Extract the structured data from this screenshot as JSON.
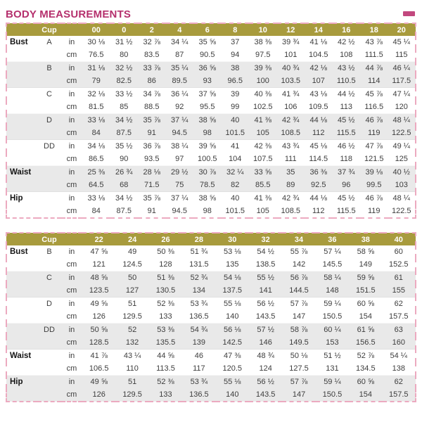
{
  "page": {
    "title": "BODY MEASUREMENTS"
  },
  "decoration": {
    "accent_dash_color": "#c2487e"
  },
  "colors": {
    "title_text": "#b5306d",
    "header_bg": "#a89b3d",
    "header_text": "#ffffff",
    "row_shade": "#e9e9e9",
    "dashed_border": "#ecaac0",
    "body_text": "#3d3d3d"
  },
  "units": [
    "in",
    "cm"
  ],
  "tables": [
    {
      "cup_header": "Cup",
      "sizes": [
        "00",
        "0",
        "2",
        "4",
        "6",
        "8",
        "10",
        "12",
        "14",
        "16",
        "18",
        "20"
      ],
      "groups": [
        {
          "label": "Bust",
          "cup": "A",
          "shaded": false,
          "in": [
            "30 ⅛",
            "31 ½",
            "32 ⅞",
            "34 ¼",
            "35 ⅝",
            "37",
            "38 ⅜",
            "39 ¾",
            "41 ⅛",
            "42 ½",
            "43 ⅞",
            "45 ¼"
          ],
          "cm": [
            "76.5",
            "80",
            "83.5",
            "87",
            "90.5",
            "94",
            "97.5",
            "101",
            "104.5",
            "108",
            "111.5",
            "115"
          ]
        },
        {
          "label": "",
          "cup": "B",
          "shaded": true,
          "in": [
            "31 ⅛",
            "32 ½",
            "33 ⅞",
            "35 ¼",
            "36 ⅝",
            "38",
            "39 ⅜",
            "40 ¾",
            "42 ⅛",
            "43 ½",
            "44 ⅞",
            "46 ¼"
          ],
          "cm": [
            "79",
            "82.5",
            "86",
            "89.5",
            "93",
            "96.5",
            "100",
            "103.5",
            "107",
            "110.5",
            "114",
            "117.5"
          ]
        },
        {
          "label": "",
          "cup": "C",
          "shaded": false,
          "in": [
            "32 ⅛",
            "33 ½",
            "34 ⅞",
            "36 ¼",
            "37 ⅝",
            "39",
            "40 ⅜",
            "41 ¾",
            "43 ⅛",
            "44 ½",
            "45 ⅞",
            "47 ¼"
          ],
          "cm": [
            "81.5",
            "85",
            "88.5",
            "92",
            "95.5",
            "99",
            "102.5",
            "106",
            "109.5",
            "113",
            "116.5",
            "120"
          ]
        },
        {
          "label": "",
          "cup": "D",
          "shaded": true,
          "in": [
            "33 ⅛",
            "34 ½",
            "35 ⅞",
            "37 ¼",
            "38 ⅝",
            "40",
            "41 ⅜",
            "42 ¾",
            "44 ⅛",
            "45 ½",
            "46 ⅞",
            "48 ¼"
          ],
          "cm": [
            "84",
            "87.5",
            "91",
            "94.5",
            "98",
            "101.5",
            "105",
            "108.5",
            "112",
            "115.5",
            "119",
            "122.5"
          ]
        },
        {
          "label": "",
          "cup": "DD",
          "shaded": false,
          "in": [
            "34 ⅛",
            "35 ½",
            "36 ⅞",
            "38 ¼",
            "39 ⅝",
            "41",
            "42 ⅜",
            "43 ¾",
            "45 ⅛",
            "46 ½",
            "47 ⅞",
            "49 ¼"
          ],
          "cm": [
            "86.5",
            "90",
            "93.5",
            "97",
            "100.5",
            "104",
            "107.5",
            "111",
            "114.5",
            "118",
            "121.5",
            "125"
          ]
        },
        {
          "label": "Waist",
          "cup": "",
          "shaded": true,
          "in": [
            "25 ⅜",
            "26 ¾",
            "28 ⅛",
            "29 ½",
            "30 ⅞",
            "32 ¼",
            "33 ⅝",
            "35",
            "36 ⅜",
            "37 ¾",
            "39 ⅛",
            "40 ½"
          ],
          "cm": [
            "64.5",
            "68",
            "71.5",
            "75",
            "78.5",
            "82",
            "85.5",
            "89",
            "92.5",
            "96",
            "99.5",
            "103"
          ]
        },
        {
          "label": "Hip",
          "cup": "",
          "shaded": false,
          "in": [
            "33 ⅛",
            "34 ½",
            "35 ⅞",
            "37 ¼",
            "38 ⅝",
            "40",
            "41 ⅜",
            "42 ¾",
            "44 ⅛",
            "45 ½",
            "46 ⅞",
            "48 ¼"
          ],
          "cm": [
            "84",
            "87.5",
            "91",
            "94.5",
            "98",
            "101.5",
            "105",
            "108.5",
            "112",
            "115.5",
            "119",
            "122.5"
          ]
        }
      ]
    },
    {
      "cup_header": "Cup",
      "sizes": [
        "22",
        "24",
        "26",
        "28",
        "30",
        "32",
        "34",
        "36",
        "38",
        "40"
      ],
      "groups": [
        {
          "label": "Bust",
          "cup": "B",
          "shaded": false,
          "in": [
            "47 ⅝",
            "49",
            "50 ⅜",
            "51 ¾",
            "53 ⅛",
            "54 ½",
            "55 ⅞",
            "57 ¼",
            "58 ⅝",
            "60"
          ],
          "cm": [
            "121",
            "124.5",
            "128",
            "131.5",
            "135",
            "138.5",
            "142",
            "145.5",
            "149",
            "152.5"
          ]
        },
        {
          "label": "",
          "cup": "C",
          "shaded": true,
          "in": [
            "48 ⅝",
            "50",
            "51 ⅜",
            "52 ¾",
            "54 ⅛",
            "55 ½",
            "56 ⅞",
            "58 ¼",
            "59 ⅝",
            "61"
          ],
          "cm": [
            "123.5",
            "127",
            "130.5",
            "134",
            "137.5",
            "141",
            "144.5",
            "148",
            "151.5",
            "155"
          ]
        },
        {
          "label": "",
          "cup": "D",
          "shaded": false,
          "in": [
            "49 ⅝",
            "51",
            "52 ⅜",
            "53 ¾",
            "55 ⅛",
            "56 ½",
            "57 ⅞",
            "59 ¼",
            "60 ⅝",
            "62"
          ],
          "cm": [
            "126",
            "129.5",
            "133",
            "136.5",
            "140",
            "143.5",
            "147",
            "150.5",
            "154",
            "157.5"
          ]
        },
        {
          "label": "",
          "cup": "DD",
          "shaded": true,
          "in": [
            "50 ⅝",
            "52",
            "53 ⅜",
            "54 ¾",
            "56 ⅛",
            "57 ½",
            "58 ⅞",
            "60 ¼",
            "61 ⅝",
            "63"
          ],
          "cm": [
            "128.5",
            "132",
            "135.5",
            "139",
            "142.5",
            "146",
            "149.5",
            "153",
            "156.5",
            "160"
          ]
        },
        {
          "label": "Waist",
          "cup": "",
          "shaded": false,
          "in": [
            "41 ⅞",
            "43 ¼",
            "44 ⅝",
            "46",
            "47 ⅜",
            "48 ¾",
            "50 ⅛",
            "51 ½",
            "52 ⅞",
            "54 ¼"
          ],
          "cm": [
            "106.5",
            "110",
            "113.5",
            "117",
            "120.5",
            "124",
            "127.5",
            "131",
            "134.5",
            "138"
          ]
        },
        {
          "label": "Hip",
          "cup": "",
          "shaded": true,
          "in": [
            "49 ⅝",
            "51",
            "52 ⅜",
            "53 ¾",
            "55 ⅛",
            "56 ½",
            "57 ⅞",
            "59 ¼",
            "60 ⅝",
            "62"
          ],
          "cm": [
            "126",
            "129.5",
            "133",
            "136.5",
            "140",
            "143.5",
            "147",
            "150.5",
            "154",
            "157.5"
          ]
        }
      ]
    }
  ]
}
